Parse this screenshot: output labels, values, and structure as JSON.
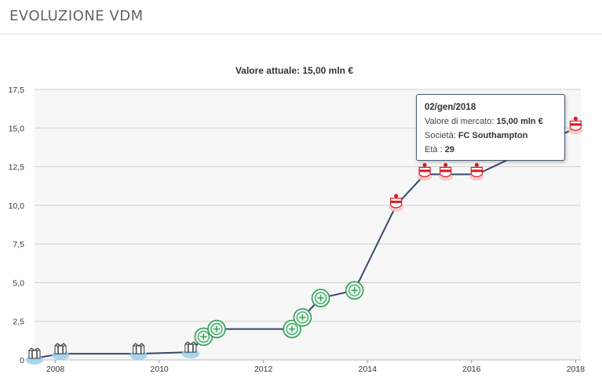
{
  "header": {
    "title": "EVOLUZIONE VDM"
  },
  "subtitle": "Valore attuale: 15,00 mln €",
  "tooltip": {
    "date": "02/gen/2018",
    "value_label": "Valore di mercato:",
    "value": "15,00 mln €",
    "club_label": "Società:",
    "club": "FC Southampton",
    "age_label": "Età :",
    "age": "29"
  },
  "colors": {
    "line": "#34486a",
    "grid": "#e6e6e6",
    "newcastle": "#3b3b3b",
    "celtic": "#2e9e58",
    "southampton": "#d71920"
  },
  "chart_data": {
    "type": "line",
    "title": "",
    "subtitle": "Valore attuale: 15,00 mln €",
    "xlabel": "",
    "ylabel": "",
    "ylim": [
      0,
      17.5
    ],
    "xlim": [
      2007.6,
      2018.1
    ],
    "y_ticks": [
      "0",
      "2,5",
      "5,0",
      "7,5",
      "10,0",
      "12,5",
      "15,0",
      "17,5"
    ],
    "x_ticks": [
      "2008",
      "2010",
      "2012",
      "2014",
      "2016",
      "2018"
    ],
    "grid": true,
    "series": [
      {
        "points": [
          {
            "x": 2007.6,
            "y": 0.1,
            "club": "newcastle"
          },
          {
            "x": 2008.1,
            "y": 0.4,
            "club": "newcastle"
          },
          {
            "x": 2009.6,
            "y": 0.4,
            "club": "newcastle"
          },
          {
            "x": 2010.6,
            "y": 0.5,
            "club": "newcastle"
          },
          {
            "x": 2010.85,
            "y": 1.5,
            "club": "celtic"
          },
          {
            "x": 2011.1,
            "y": 2.0,
            "club": "celtic"
          },
          {
            "x": 2012.55,
            "y": 2.0,
            "club": "celtic"
          },
          {
            "x": 2012.75,
            "y": 2.75,
            "club": "celtic"
          },
          {
            "x": 2013.1,
            "y": 4.0,
            "club": "celtic"
          },
          {
            "x": 2013.75,
            "y": 4.5,
            "club": "celtic"
          },
          {
            "x": 2014.55,
            "y": 10.0,
            "club": "southampton"
          },
          {
            "x": 2015.1,
            "y": 12.0,
            "club": "southampton"
          },
          {
            "x": 2015.5,
            "y": 12.0,
            "club": "southampton"
          },
          {
            "x": 2016.1,
            "y": 12.0,
            "club": "southampton"
          },
          {
            "x": 2018.0,
            "y": 15.0,
            "club": "southampton"
          }
        ]
      }
    ]
  }
}
